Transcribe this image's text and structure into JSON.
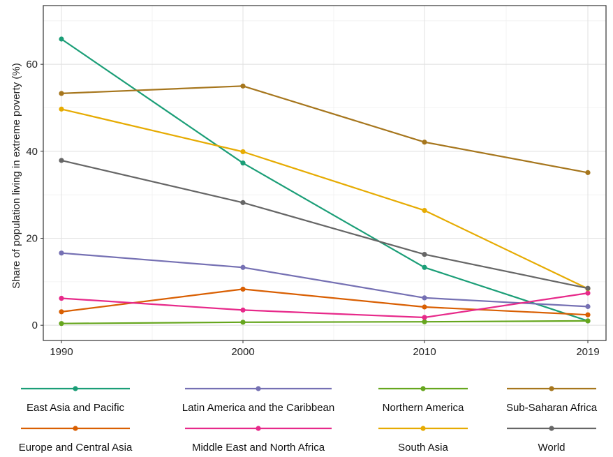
{
  "chart_data": {
    "type": "line",
    "title": "",
    "xlabel": "",
    "ylabel": "Share of population living in extreme poverty (%)",
    "x": [
      1990,
      2000,
      2010,
      2019
    ],
    "x_ticks": [
      "1990",
      "2000",
      "2010",
      "2019"
    ],
    "y_ticks": [
      "0",
      "20",
      "40",
      "60"
    ],
    "xlim": [
      1989,
      2020
    ],
    "ylim": [
      -3.5,
      73.5
    ],
    "grid": true,
    "legend_position": "bottom",
    "series": [
      {
        "name": "East Asia and Pacific",
        "color": "#1b9e77",
        "values": [
          65.8,
          37.3,
          13.3,
          1.0
        ]
      },
      {
        "name": "Latin America and the Caribbean",
        "color": "#7570b3",
        "values": [
          16.6,
          13.3,
          6.3,
          4.3
        ]
      },
      {
        "name": "Northern America",
        "color": "#66a61e",
        "values": [
          0.4,
          0.7,
          0.8,
          1.0
        ]
      },
      {
        "name": "Sub-Saharan Africa",
        "color": "#a6761d",
        "values": [
          53.3,
          55.0,
          42.1,
          35.1
        ]
      },
      {
        "name": "Europe and Central Asia",
        "color": "#d95f02",
        "values": [
          3.1,
          8.3,
          4.2,
          2.4
        ]
      },
      {
        "name": "Middle East and North Africa",
        "color": "#e7298a",
        "values": [
          6.2,
          3.5,
          1.8,
          7.4
        ]
      },
      {
        "name": "South Asia",
        "color": "#e6ab02",
        "values": [
          49.7,
          39.9,
          26.4,
          8.4
        ]
      },
      {
        "name": "World",
        "color": "#666666",
        "values": [
          37.9,
          28.2,
          16.3,
          8.5
        ]
      }
    ]
  }
}
